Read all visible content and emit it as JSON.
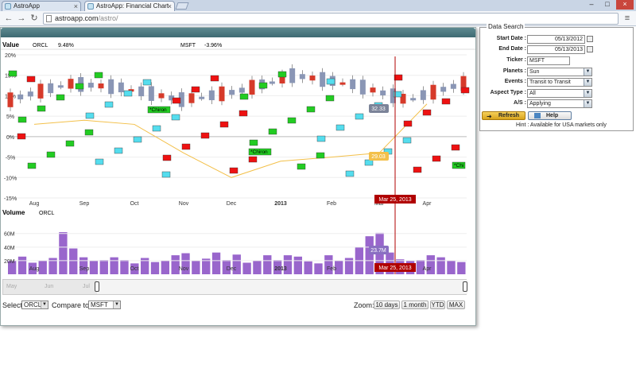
{
  "browser": {
    "tabs": [
      {
        "label": "AstroApp",
        "active": false
      },
      {
        "label": "AstroApp: Financial Chart",
        "active": true
      }
    ],
    "url_host": "astroapp.com",
    "url_path": "/astro/"
  },
  "chart": {
    "value_label": "Value",
    "series_a_name": "ORCL",
    "series_a_change": "9.48%",
    "series_b_name": "MSFT",
    "series_b_change": "-3.96%",
    "y_ticks": [
      "20%",
      "15%",
      "10%",
      "5%",
      "0%",
      "-5%",
      "-10%",
      "-15%"
    ],
    "x_ticks": [
      "Aug",
      "Sep",
      "Oct",
      "Nov",
      "Dec",
      "2013",
      "Feb",
      "Mar",
      "Apr"
    ],
    "crosshair_date": "Mar 25, 2013",
    "value_tooltip_a": "32.33",
    "value_tooltip_b": "29.03",
    "planet_labels": [
      "Chiron",
      "Chiron",
      "Chi"
    ],
    "volume_label": "Volume",
    "volume_series": "ORCL",
    "volume_ticks": [
      "60M",
      "40M",
      "20M"
    ],
    "volume_tooltip": "23.7M",
    "navigator_labels": [
      "May",
      "Jun",
      "Jul",
      "Aug",
      "Sep",
      "Oct",
      "Nov",
      "Dec",
      "2013",
      "Feb",
      "Mar",
      "Apr"
    ],
    "colors": {
      "up": "#8a96b5",
      "down": "#d63a2a",
      "line": "#f3c04a",
      "volume": "#9966cc",
      "crosshair": "#b00000",
      "event_green": "#22cc22",
      "event_cyan": "#55ddee",
      "event_red": "#ee1111"
    }
  },
  "chart_data": {
    "type": "line",
    "title": "",
    "x": [
      "Aug",
      "Sep",
      "Oct",
      "Nov",
      "Dec",
      "2013",
      "Feb",
      "Mar",
      "Apr"
    ],
    "series": [
      {
        "name": "ORCL",
        "values": [
          9,
          13,
          12,
          9,
          11,
          15,
          13,
          9,
          13
        ]
      },
      {
        "name": "MSFT",
        "values": [
          3,
          4,
          3,
          -4,
          -10,
          -6,
          -5,
          -4,
          8
        ]
      }
    ],
    "ylabel": "",
    "ylim": [
      -15,
      20
    ],
    "volume": {
      "name": "ORCL",
      "values_millions": [
        20,
        26,
        17,
        20,
        24,
        62,
        38,
        25,
        20,
        21,
        25,
        21,
        16,
        24,
        18,
        20,
        28,
        31,
        20,
        23,
        32,
        21,
        29,
        17,
        20,
        28,
        21,
        28,
        26,
        19,
        16,
        28,
        20,
        24,
        40,
        56,
        61,
        32,
        22,
        20,
        21,
        28,
        25,
        20,
        18
      ]
    }
  },
  "controls": {
    "select_label": "Select:",
    "select_value": "ORCL",
    "compare_label": "Compare to:",
    "compare_value": "MSFT",
    "zoom_label": "Zoom:",
    "zoom_buttons": [
      "10 days",
      "1 month",
      "YTD",
      "MAX"
    ]
  },
  "form": {
    "legend": "Data Search",
    "start_date_label": "Start Date :",
    "start_date": "05/13/2012",
    "end_date_label": "End Date :",
    "end_date": "05/13/2013",
    "ticker_label": "Ticker :",
    "ticker": "MSFT",
    "planets_label": "Planets :",
    "planets": "Sun",
    "events_label": "Events :",
    "events": "Transit to Transit",
    "aspect_label": "Aspect Type :",
    "aspect": "All",
    "as_label": "A/S :",
    "as_value": "Applying",
    "refresh_label": "Refresh",
    "help_label": "Help",
    "hint": "Hint : Available for USA markets only"
  }
}
